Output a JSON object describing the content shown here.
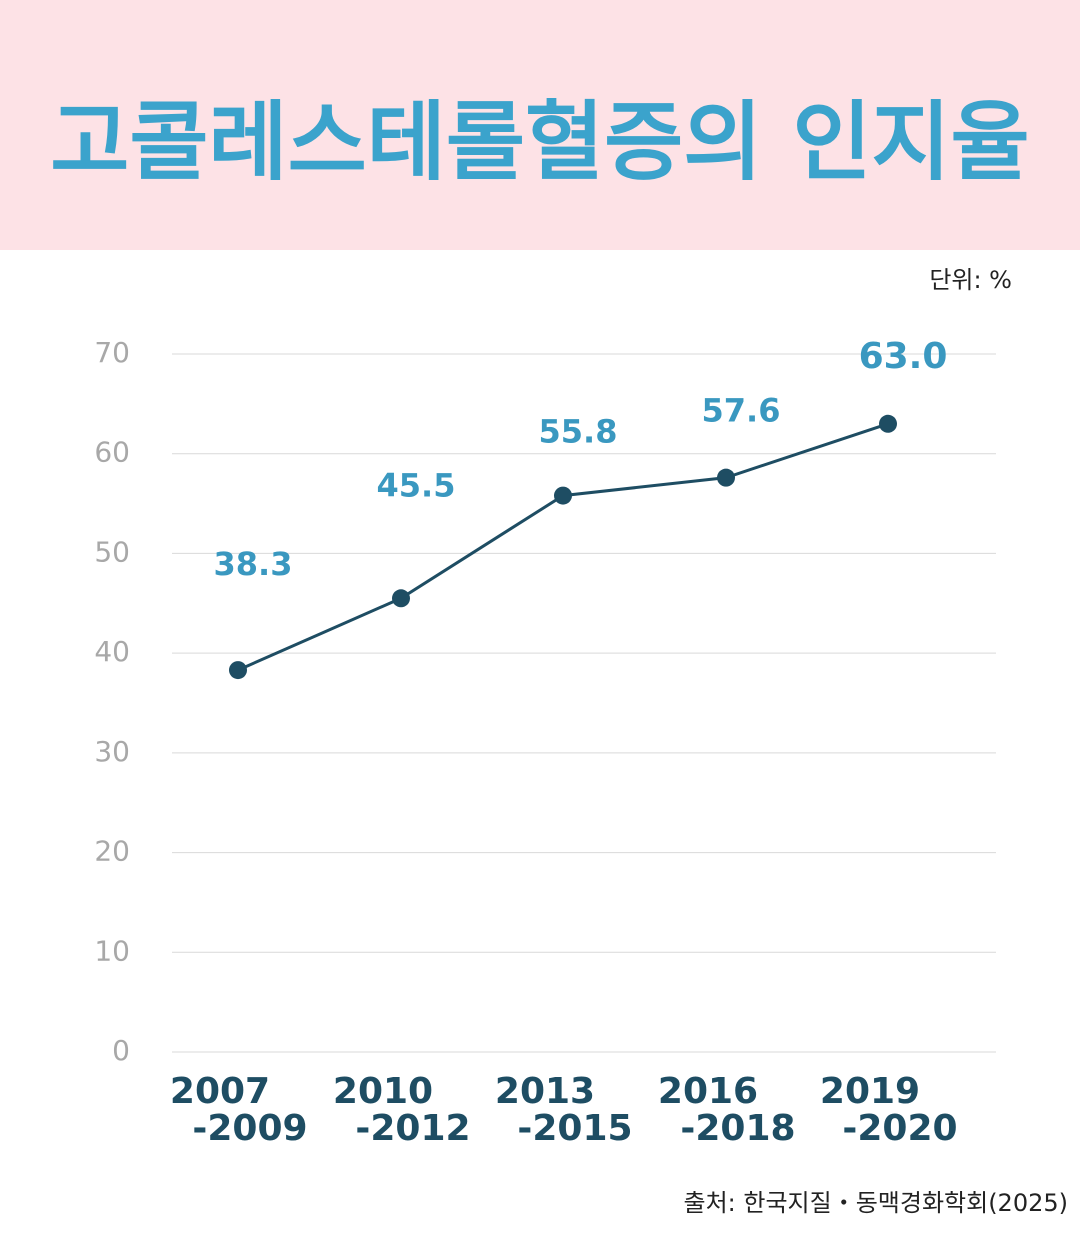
{
  "chart_data": {
    "type": "line",
    "title": "고콜레스테롤혈증의 인지율",
    "unit_note": "단위: %",
    "source": "출처: 한국지질・동맥경화학회(2025)",
    "categories": [
      [
        "2007",
        "-2009"
      ],
      [
        "2010",
        "-2012"
      ],
      [
        "2013",
        "-2015"
      ],
      [
        "2016",
        "-2018"
      ],
      [
        "2019",
        "-2020"
      ]
    ],
    "values": [
      38.3,
      45.5,
      55.8,
      57.6,
      63.0
    ],
    "value_labels": [
      "38.3",
      "45.5",
      "55.8",
      "57.6",
      "63.0"
    ],
    "color": "#1e4d63",
    "ylim": [
      0,
      70
    ],
    "yticks": [
      0,
      10,
      20,
      30,
      40,
      50,
      60,
      70
    ],
    "grid": true
  }
}
